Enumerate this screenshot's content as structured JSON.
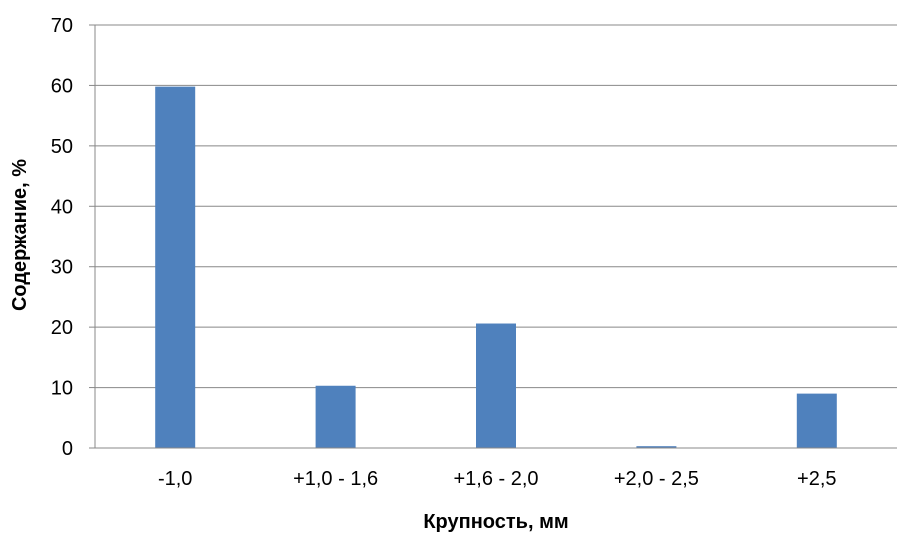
{
  "chart_data": {
    "type": "bar",
    "title": "",
    "xlabel": "Крупность, мм",
    "ylabel": "Содержание, %",
    "categories": [
      "-1,0",
      "+1,0 - 1,6",
      "+1,6 - 2,0",
      "+2,0 - 2,5",
      "+2,5"
    ],
    "values": [
      59.8,
      10.3,
      20.6,
      0.3,
      9.0
    ],
    "ylim": [
      0,
      70
    ],
    "yticks": [
      "0",
      "10",
      "20",
      "30",
      "40",
      "50",
      "60",
      "70"
    ],
    "grid": true,
    "legend": "none",
    "bar_color": "#4F81BD",
    "grid_color": "#888888"
  }
}
